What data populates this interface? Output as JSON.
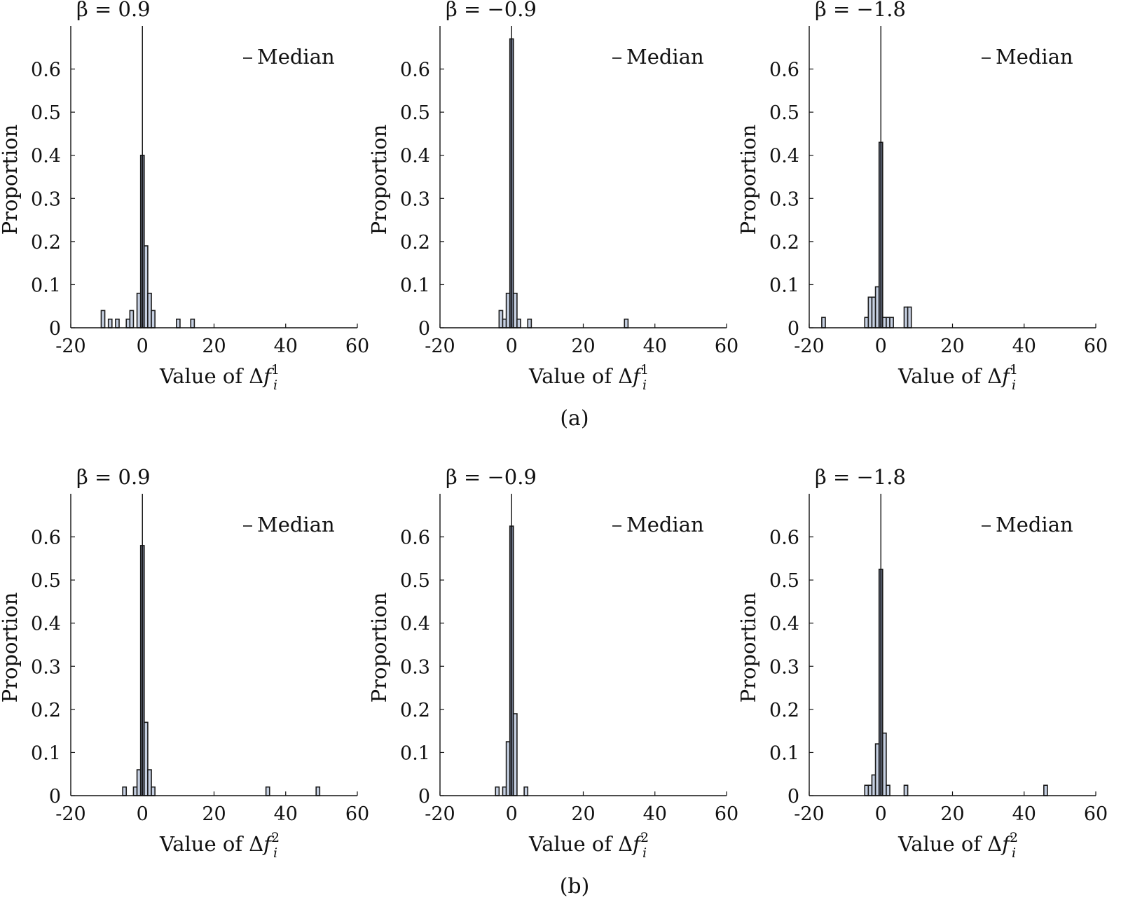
{
  "captions": [
    "(a)",
    "(b)"
  ],
  "legend_label": "Median",
  "y_axis_label": "Proportion",
  "x_axis_label_prefix": "Value of ",
  "bar_fill": "#c6d0e2",
  "bar_fill_dark": "#6b7488",
  "chart_data": [
    {
      "type": "bar",
      "row": 0,
      "col": 0,
      "title": "β = 0.9",
      "xlabel": "Value of Δf_i^1",
      "sup": "1",
      "ylabel": "Proportion",
      "xlim": [
        -20,
        60
      ],
      "ylim": [
        0,
        0.7
      ],
      "xticks": [
        -20,
        0,
        20,
        40,
        60
      ],
      "yticks": [
        0,
        0.1,
        0.2,
        0.3,
        0.4,
        0.5,
        0.6
      ],
      "median": 0,
      "bins": [
        {
          "x": -11,
          "y": 0.04
        },
        {
          "x": -9,
          "y": 0.02
        },
        {
          "x": -7,
          "y": 0.02
        },
        {
          "x": -4,
          "y": 0.02
        },
        {
          "x": -3,
          "y": 0.04
        },
        {
          "x": -1,
          "y": 0.08
        },
        {
          "x": 0,
          "y": 0.4
        },
        {
          "x": 1,
          "y": 0.19
        },
        {
          "x": 2,
          "y": 0.08
        },
        {
          "x": 3,
          "y": 0.04
        },
        {
          "x": 10,
          "y": 0.02
        },
        {
          "x": 14,
          "y": 0.02
        }
      ]
    },
    {
      "type": "bar",
      "row": 0,
      "col": 1,
      "title": "β = −0.9",
      "xlabel": "Value of Δf_i^1",
      "sup": "1",
      "ylabel": "Proportion",
      "xlim": [
        -20,
        60
      ],
      "ylim": [
        0,
        0.7
      ],
      "xticks": [
        -20,
        0,
        20,
        40,
        60
      ],
      "yticks": [
        0,
        0.1,
        0.2,
        0.3,
        0.4,
        0.5,
        0.6
      ],
      "median": 0,
      "bins": [
        {
          "x": -3,
          "y": 0.04
        },
        {
          "x": -2,
          "y": 0.02
        },
        {
          "x": -1,
          "y": 0.08
        },
        {
          "x": 0,
          "y": 0.67
        },
        {
          "x": 1,
          "y": 0.08
        },
        {
          "x": 2,
          "y": 0.02
        },
        {
          "x": 5,
          "y": 0.02
        },
        {
          "x": 32,
          "y": 0.02
        }
      ]
    },
    {
      "type": "bar",
      "row": 0,
      "col": 2,
      "title": "β = −1.8",
      "xlabel": "Value of Δf_i^1",
      "sup": "1",
      "ylabel": "Proportion",
      "xlim": [
        -20,
        60
      ],
      "ylim": [
        0,
        0.7
      ],
      "xticks": [
        -20,
        0,
        20,
        40,
        60
      ],
      "yticks": [
        0,
        0.1,
        0.2,
        0.3,
        0.4,
        0.5,
        0.6
      ],
      "median": 0,
      "bins": [
        {
          "x": -16,
          "y": 0.024
        },
        {
          "x": -4,
          "y": 0.024
        },
        {
          "x": -3,
          "y": 0.071
        },
        {
          "x": -2,
          "y": 0.071
        },
        {
          "x": -1,
          "y": 0.095
        },
        {
          "x": 0,
          "y": 0.43
        },
        {
          "x": 1,
          "y": 0.024
        },
        {
          "x": 2,
          "y": 0.024
        },
        {
          "x": 3,
          "y": 0.024
        },
        {
          "x": 7,
          "y": 0.048
        },
        {
          "x": 8,
          "y": 0.048
        }
      ]
    },
    {
      "type": "bar",
      "row": 1,
      "col": 0,
      "title": "β = 0.9",
      "xlabel": "Value of Δf_i^2",
      "sup": "2",
      "ylabel": "Proportion",
      "xlim": [
        -20,
        60
      ],
      "ylim": [
        0,
        0.7
      ],
      "xticks": [
        -20,
        0,
        20,
        40,
        60
      ],
      "yticks": [
        0,
        0.1,
        0.2,
        0.3,
        0.4,
        0.5,
        0.6
      ],
      "median": 0,
      "bins": [
        {
          "x": -5,
          "y": 0.02
        },
        {
          "x": -2,
          "y": 0.02
        },
        {
          "x": -1,
          "y": 0.06
        },
        {
          "x": 0,
          "y": 0.58
        },
        {
          "x": 1,
          "y": 0.17
        },
        {
          "x": 2,
          "y": 0.06
        },
        {
          "x": 3,
          "y": 0.02
        },
        {
          "x": 35,
          "y": 0.02
        },
        {
          "x": 49,
          "y": 0.02
        }
      ]
    },
    {
      "type": "bar",
      "row": 1,
      "col": 1,
      "title": "β = −0.9",
      "xlabel": "Value of Δf_i^2",
      "sup": "2",
      "ylabel": "Proportion",
      "xlim": [
        -20,
        60
      ],
      "ylim": [
        0,
        0.7
      ],
      "xticks": [
        -20,
        0,
        20,
        40,
        60
      ],
      "yticks": [
        0,
        0.1,
        0.2,
        0.3,
        0.4,
        0.5,
        0.6
      ],
      "median": 0,
      "bins": [
        {
          "x": -4,
          "y": 0.02
        },
        {
          "x": -2,
          "y": 0.02
        },
        {
          "x": -1,
          "y": 0.125
        },
        {
          "x": 0,
          "y": 0.625
        },
        {
          "x": 1,
          "y": 0.19
        },
        {
          "x": 4,
          "y": 0.02
        }
      ]
    },
    {
      "type": "bar",
      "row": 1,
      "col": 2,
      "title": "β = −1.8",
      "xlabel": "Value of Δf_i^2",
      "sup": "2",
      "ylabel": "Proportion",
      "xlim": [
        -20,
        60
      ],
      "ylim": [
        0,
        0.7
      ],
      "xticks": [
        -20,
        0,
        20,
        40,
        60
      ],
      "yticks": [
        0,
        0.1,
        0.2,
        0.3,
        0.4,
        0.5,
        0.6
      ],
      "median": 0,
      "bins": [
        {
          "x": -4,
          "y": 0.024
        },
        {
          "x": -3,
          "y": 0.024
        },
        {
          "x": -2,
          "y": 0.048
        },
        {
          "x": -1,
          "y": 0.12
        },
        {
          "x": 0,
          "y": 0.525
        },
        {
          "x": 1,
          "y": 0.145
        },
        {
          "x": 2,
          "y": 0.024
        },
        {
          "x": 7,
          "y": 0.024
        },
        {
          "x": 46,
          "y": 0.024
        }
      ]
    }
  ]
}
